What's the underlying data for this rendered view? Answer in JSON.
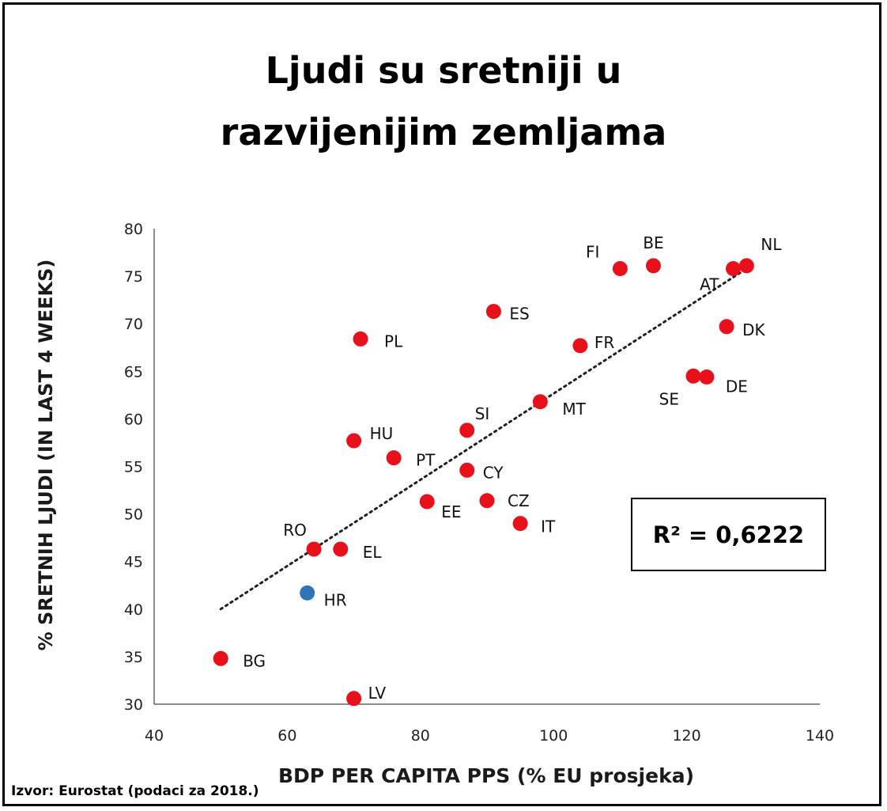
{
  "chart_data": {
    "type": "scatter",
    "title": "Ljudi su sretniji u razvijenijim zemljama",
    "title_lines": [
      "Ljudi su sretniji u",
      "razvijenijim zemljama"
    ],
    "xlabel": "BDP PER CAPITA PPS (% EU prosjeka)",
    "ylabel": "% SRETNIH LJUDI (IN LAST 4 WEEKS)",
    "xlim": [
      40,
      140
    ],
    "ylim": [
      30,
      80
    ],
    "xticks": [
      40,
      60,
      80,
      100,
      120,
      140
    ],
    "yticks": [
      30,
      35,
      40,
      45,
      50,
      55,
      60,
      65,
      70,
      75,
      80
    ],
    "grid": false,
    "point_color": "#e8101a",
    "highlight_color": "#2e75b6",
    "points": [
      {
        "label": "FI",
        "x": 110,
        "y": 75.8
      },
      {
        "label": "BE",
        "x": 115,
        "y": 76.1
      },
      {
        "label": "NL",
        "x": 129,
        "y": 76.1
      },
      {
        "label": "AT",
        "x": 127,
        "y": 75.8
      },
      {
        "label": "ES",
        "x": 91,
        "y": 71.3
      },
      {
        "label": "DK",
        "x": 126,
        "y": 69.7
      },
      {
        "label": "PL",
        "x": 71,
        "y": 68.4
      },
      {
        "label": "FR",
        "x": 104,
        "y": 67.7
      },
      {
        "label": "SE",
        "x": 121,
        "y": 64.5
      },
      {
        "label": "DE",
        "x": 123,
        "y": 64.4
      },
      {
        "label": "MT",
        "x": 98,
        "y": 61.8
      },
      {
        "label": "SI",
        "x": 87,
        "y": 58.8
      },
      {
        "label": "HU",
        "x": 70,
        "y": 57.7
      },
      {
        "label": "PT",
        "x": 76,
        "y": 55.9
      },
      {
        "label": "CY",
        "x": 87,
        "y": 54.6
      },
      {
        "label": "EE",
        "x": 81,
        "y": 51.3
      },
      {
        "label": "CZ",
        "x": 90,
        "y": 51.4
      },
      {
        "label": "IT",
        "x": 95,
        "y": 49.0
      },
      {
        "label": "RO",
        "x": 64,
        "y": 46.3
      },
      {
        "label": "EL",
        "x": 68,
        "y": 46.3
      },
      {
        "label": "HR",
        "x": 63,
        "y": 41.7,
        "highlight": true
      },
      {
        "label": "BG",
        "x": 50,
        "y": 34.8
      },
      {
        "label": "LV",
        "x": 70,
        "y": 30.6
      }
    ],
    "trendline": {
      "style": "dotted",
      "x": [
        50,
        129
      ],
      "y": [
        40.0,
        75.8
      ]
    },
    "r_squared_label": "R² = 0,6222"
  },
  "source": "Izvor: Eurostat (podaci za 2018.)"
}
